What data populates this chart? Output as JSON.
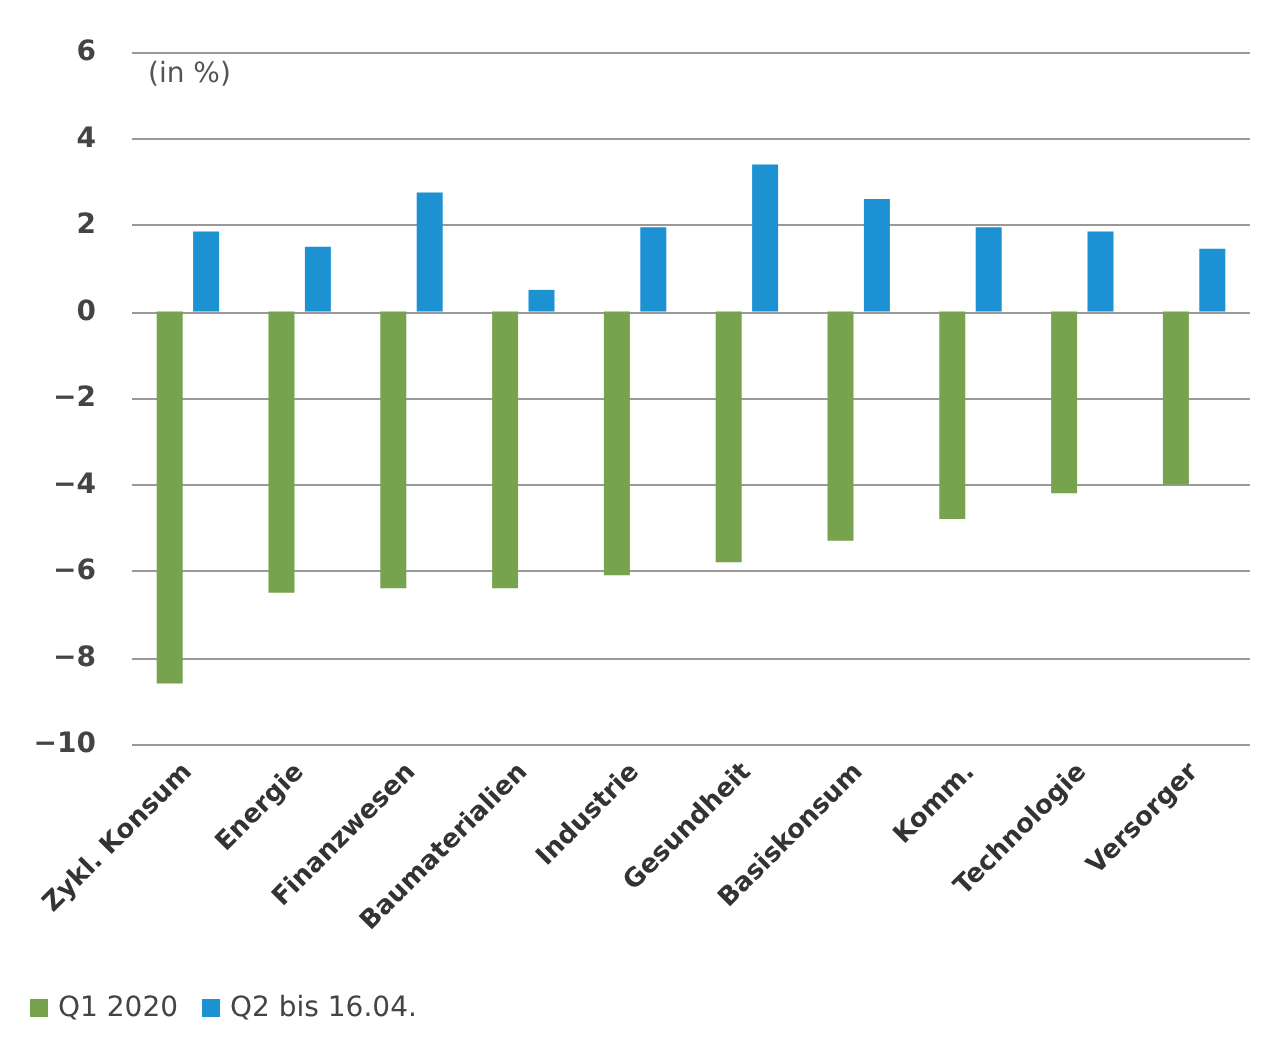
{
  "chart_data": {
    "type": "bar",
    "categories": [
      "Zykl. Konsum",
      "Energie",
      "Finanzwesen",
      "Baumaterialien",
      "Industrie",
      "Gesundheit",
      "Basiskonsum",
      "Komm.",
      "Technologie",
      "Versorger"
    ],
    "series": [
      {
        "name": "Q1 2020",
        "color": "#78a34e",
        "values": [
          -8.6,
          -6.5,
          -6.4,
          -6.4,
          -6.1,
          -5.8,
          -5.3,
          -4.8,
          -4.2,
          -4.0
        ]
      },
      {
        "name": "Q2 bis 16.04.",
        "color": "#1d92d3",
        "values": [
          1.85,
          1.5,
          2.75,
          0.5,
          1.95,
          3.4,
          2.6,
          1.95,
          1.85,
          1.45
        ]
      }
    ],
    "annotations": [
      "(in %)"
    ],
    "ylim": [
      -10,
      6
    ],
    "yticks": [
      -10,
      -8,
      -6,
      -4,
      -2,
      0,
      2,
      4,
      6
    ],
    "grid": "y",
    "legend": "bottom left"
  }
}
